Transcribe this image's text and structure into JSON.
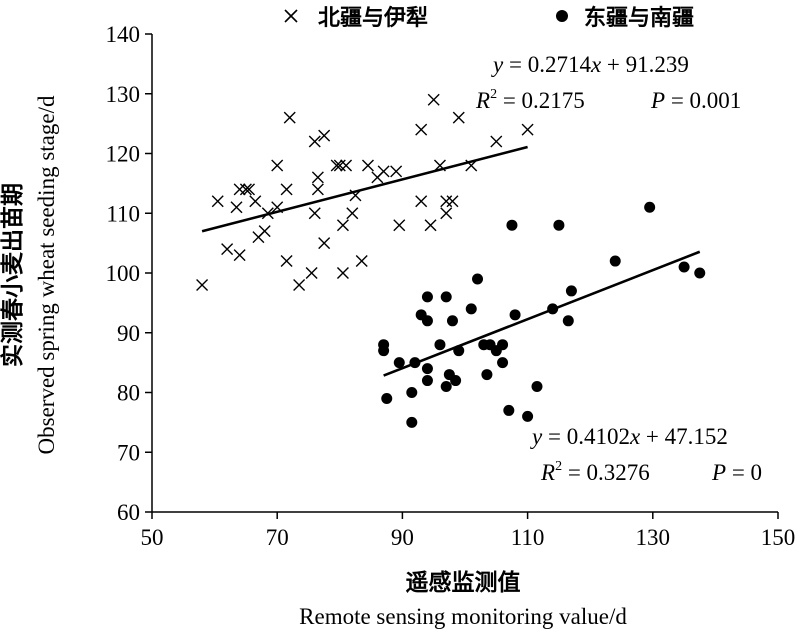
{
  "chart_data": {
    "type": "scatter",
    "xlabel_cn": "遥感监测值",
    "xlabel": "Remote sensing monitoring value/d",
    "ylabel_cn": "实测春小麦出苗期",
    "ylabel": "Observed spring wheat seeding stage/d",
    "xlim": [
      50,
      150
    ],
    "ylim": [
      60,
      140
    ],
    "x_ticks": [
      "50",
      "70",
      "90",
      "110",
      "130",
      "150"
    ],
    "y_ticks": [
      "60",
      "70",
      "80",
      "90",
      "100",
      "110",
      "120",
      "130",
      "140"
    ],
    "grid": false,
    "legend_position": "top",
    "series": [
      {
        "name": "北疆与伊犁",
        "marker": "x",
        "color": "#000000",
        "points": [
          [
            58,
            98
          ],
          [
            60.5,
            112
          ],
          [
            62,
            104
          ],
          [
            63.5,
            111
          ],
          [
            64,
            103
          ],
          [
            64,
            114
          ],
          [
            65,
            114
          ],
          [
            65.5,
            114
          ],
          [
            66.5,
            112
          ],
          [
            67,
            106
          ],
          [
            68,
            107
          ],
          [
            68.5,
            110
          ],
          [
            70,
            111
          ],
          [
            70,
            118
          ],
          [
            71.5,
            102
          ],
          [
            71.5,
            114
          ],
          [
            72,
            126
          ],
          [
            73.5,
            98
          ],
          [
            75.5,
            100
          ],
          [
            76,
            110
          ],
          [
            76,
            122
          ],
          [
            76.5,
            114
          ],
          [
            76.5,
            116
          ],
          [
            77.5,
            123
          ],
          [
            77.5,
            105
          ],
          [
            79.5,
            118
          ],
          [
            80,
            118
          ],
          [
            80.5,
            100
          ],
          [
            80.5,
            108
          ],
          [
            81,
            118
          ],
          [
            82,
            110
          ],
          [
            82.5,
            113
          ],
          [
            83.5,
            102
          ],
          [
            84.5,
            118
          ],
          [
            86,
            116
          ],
          [
            87,
            117
          ],
          [
            89,
            117
          ],
          [
            89.5,
            108
          ],
          [
            93,
            124
          ],
          [
            93,
            112
          ],
          [
            94.5,
            108
          ],
          [
            95,
            129
          ],
          [
            96,
            118
          ],
          [
            97,
            112
          ],
          [
            97,
            110
          ],
          [
            98,
            112
          ],
          [
            99,
            126
          ],
          [
            101,
            118
          ],
          [
            105,
            122
          ],
          [
            110,
            124
          ]
        ],
        "fit": {
          "slope": 0.2714,
          "intercept": 91.239,
          "x_range": [
            58,
            110
          ]
        }
      },
      {
        "name": "东疆与南疆",
        "marker": "circle",
        "color": "#000000",
        "points": [
          [
            87,
            87
          ],
          [
            87,
            88
          ],
          [
            87.5,
            79
          ],
          [
            89.5,
            85
          ],
          [
            91.5,
            75
          ],
          [
            91.5,
            80
          ],
          [
            92,
            85
          ],
          [
            93,
            93
          ],
          [
            94,
            82
          ],
          [
            94,
            84
          ],
          [
            94,
            92
          ],
          [
            94,
            96
          ],
          [
            96,
            88
          ],
          [
            97,
            96
          ],
          [
            97,
            81
          ],
          [
            97.5,
            83
          ],
          [
            98,
            92
          ],
          [
            98.5,
            82
          ],
          [
            99,
            87
          ],
          [
            101,
            94
          ],
          [
            102,
            99
          ],
          [
            103,
            88
          ],
          [
            103.5,
            83
          ],
          [
            104,
            88
          ],
          [
            105,
            87
          ],
          [
            106,
            85
          ],
          [
            106,
            88
          ],
          [
            107,
            77
          ],
          [
            107.5,
            108
          ],
          [
            108,
            93
          ],
          [
            110,
            76
          ],
          [
            111.5,
            81
          ],
          [
            114,
            94
          ],
          [
            115,
            108
          ],
          [
            116.5,
            92
          ],
          [
            117,
            97
          ],
          [
            124,
            102
          ],
          [
            129.5,
            111
          ],
          [
            135,
            101
          ],
          [
            137.5,
            100
          ]
        ],
        "fit": {
          "slope": 0.4102,
          "intercept": 47.152,
          "x_range": [
            87,
            137.5
          ]
        }
      }
    ],
    "annotations": [
      {
        "eq_y": "y",
        "eq_rest": " = 0.2714",
        "eq_x": "x",
        "eq_tail": " + 91.239",
        "r2_label": "R",
        "r2_sup": "2",
        "r2_value": " = 0.2175",
        "p_label": "P",
        "p_value": " = 0.001"
      },
      {
        "eq_y": "y",
        "eq_rest": " = 0.4102",
        "eq_x": "x",
        "eq_tail": " + 47.152",
        "r2_label": "R",
        "r2_sup": "2",
        "r2_value": " = 0.3276",
        "p_label": "P",
        "p_value": " = 0"
      }
    ]
  }
}
